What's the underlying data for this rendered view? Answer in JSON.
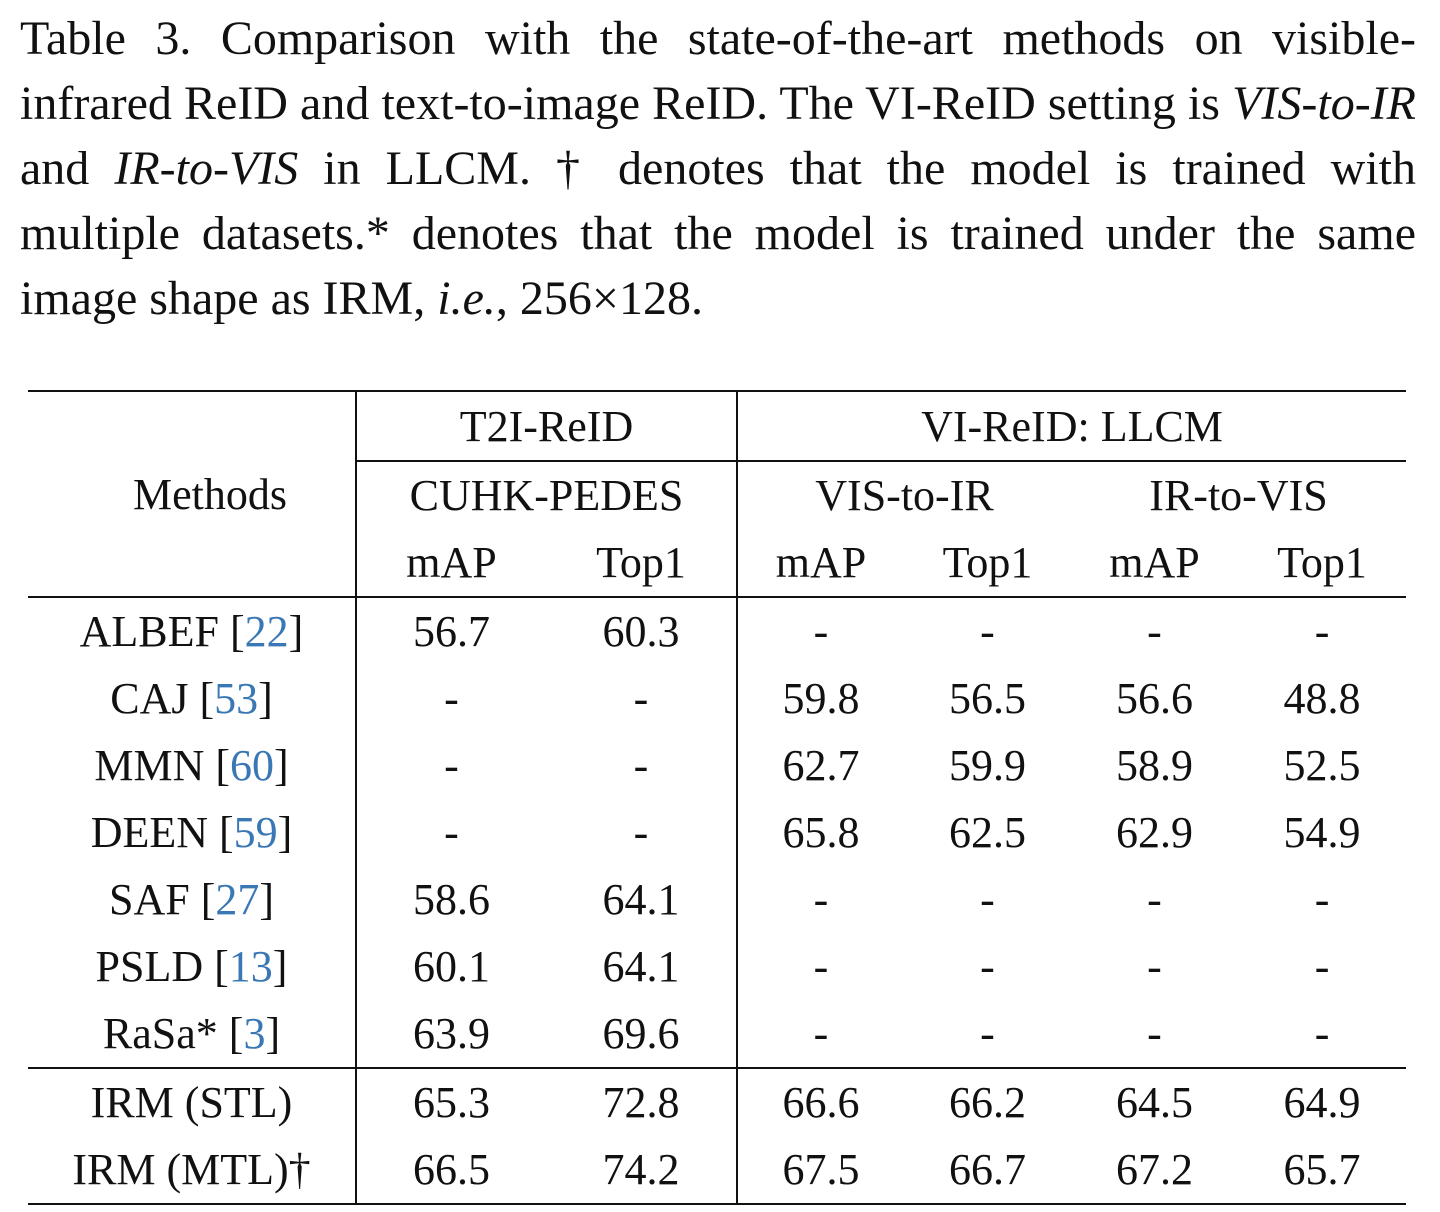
{
  "caption": {
    "part1": "Table 3. Comparison with the state-of-the-art methods on visible-infrared ReID and text-to-image ReID. The VI-ReID setting is ",
    "italic1": "VIS-to-IR",
    "part2": " and ",
    "italic2": "IR-to-VIS",
    "part3": " in LLCM. † denotes that the model is trained with multiple datasets.* denotes that the model is trained under the same image shape as IRM, ",
    "italic3": "i.e.",
    "part4": ", 256×128."
  },
  "table": {
    "methods_header": "Methods",
    "group_t2i": "T2I-ReID",
    "group_vi": "VI-ReID: LLCM",
    "sub_cuhk": "CUHK-PEDES",
    "sub_vis2ir": "VIS-to-IR",
    "sub_ir2vis": "IR-to-VIS",
    "metrics": [
      "mAP",
      "Top1",
      "mAP",
      "Top1",
      "mAP",
      "Top1"
    ],
    "rows": [
      {
        "name": "ALBEF",
        "ref": "22",
        "values": [
          "56.7",
          "60.3",
          "-",
          "-",
          "-",
          "-"
        ]
      },
      {
        "name": "CAJ",
        "ref": "53",
        "values": [
          "-",
          "-",
          "59.8",
          "56.5",
          "56.6",
          "48.8"
        ]
      },
      {
        "name": "MMN",
        "ref": "60",
        "values": [
          "-",
          "-",
          "62.7",
          "59.9",
          "58.9",
          "52.5"
        ]
      },
      {
        "name": "DEEN",
        "ref": "59",
        "values": [
          "-",
          "-",
          "65.8",
          "62.5",
          "62.9",
          "54.9"
        ]
      },
      {
        "name": "SAF",
        "ref": "27",
        "values": [
          "58.6",
          "64.1",
          "-",
          "-",
          "-",
          "-"
        ]
      },
      {
        "name": "PSLD",
        "ref": "13",
        "values": [
          "60.1",
          "64.1",
          "-",
          "-",
          "-",
          "-"
        ]
      },
      {
        "name": "RaSa*",
        "ref": "3",
        "values": [
          "63.9",
          "69.6",
          "-",
          "-",
          "-",
          "-"
        ]
      }
    ],
    "ours": [
      {
        "name": "IRM (STL)",
        "values": [
          "65.3",
          "72.8",
          "66.6",
          "66.2",
          "64.5",
          "64.9"
        ],
        "bold": false
      },
      {
        "name": "IRM (MTL)†",
        "values": [
          "66.5",
          "74.2",
          "67.5",
          "66.7",
          "67.2",
          "65.7"
        ],
        "bold": true
      }
    ]
  }
}
